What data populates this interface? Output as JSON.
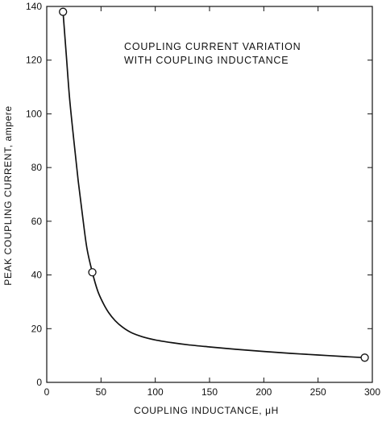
{
  "chart_data": {
    "type": "line",
    "title_lines": [
      "COUPLING CURRENT VARIATION",
      "WITH COUPLING INDUCTANCE"
    ],
    "xlabel": "COUPLING INDUCTANCE, μH",
    "ylabel": "PEAK COUPLING CURRENT, ampere",
    "xlim": [
      0,
      300
    ],
    "ylim": [
      0,
      140
    ],
    "x_ticks": [
      0,
      50,
      100,
      150,
      200,
      250,
      300
    ],
    "y_ticks": [
      0,
      20,
      40,
      60,
      80,
      100,
      120,
      140
    ],
    "grid": false,
    "series": [
      {
        "curve_x": [
          15,
          18,
          21,
          25,
          29,
          33,
          37,
          42,
          47,
          52,
          57,
          63,
          70,
          78,
          88,
          100,
          115,
          130,
          150,
          175,
          200,
          225,
          250,
          275,
          293
        ],
        "curve_y": [
          138,
          122,
          106,
          90,
          75,
          62,
          50,
          41,
          34,
          29.5,
          26,
          23,
          20.5,
          18.5,
          17,
          15.8,
          14.8,
          14,
          13.2,
          12.3,
          11.5,
          10.8,
          10.2,
          9.6,
          9.2
        ],
        "markers_x": [
          15,
          42,
          293
        ],
        "markers_y": [
          138,
          41,
          9.2
        ]
      }
    ]
  }
}
